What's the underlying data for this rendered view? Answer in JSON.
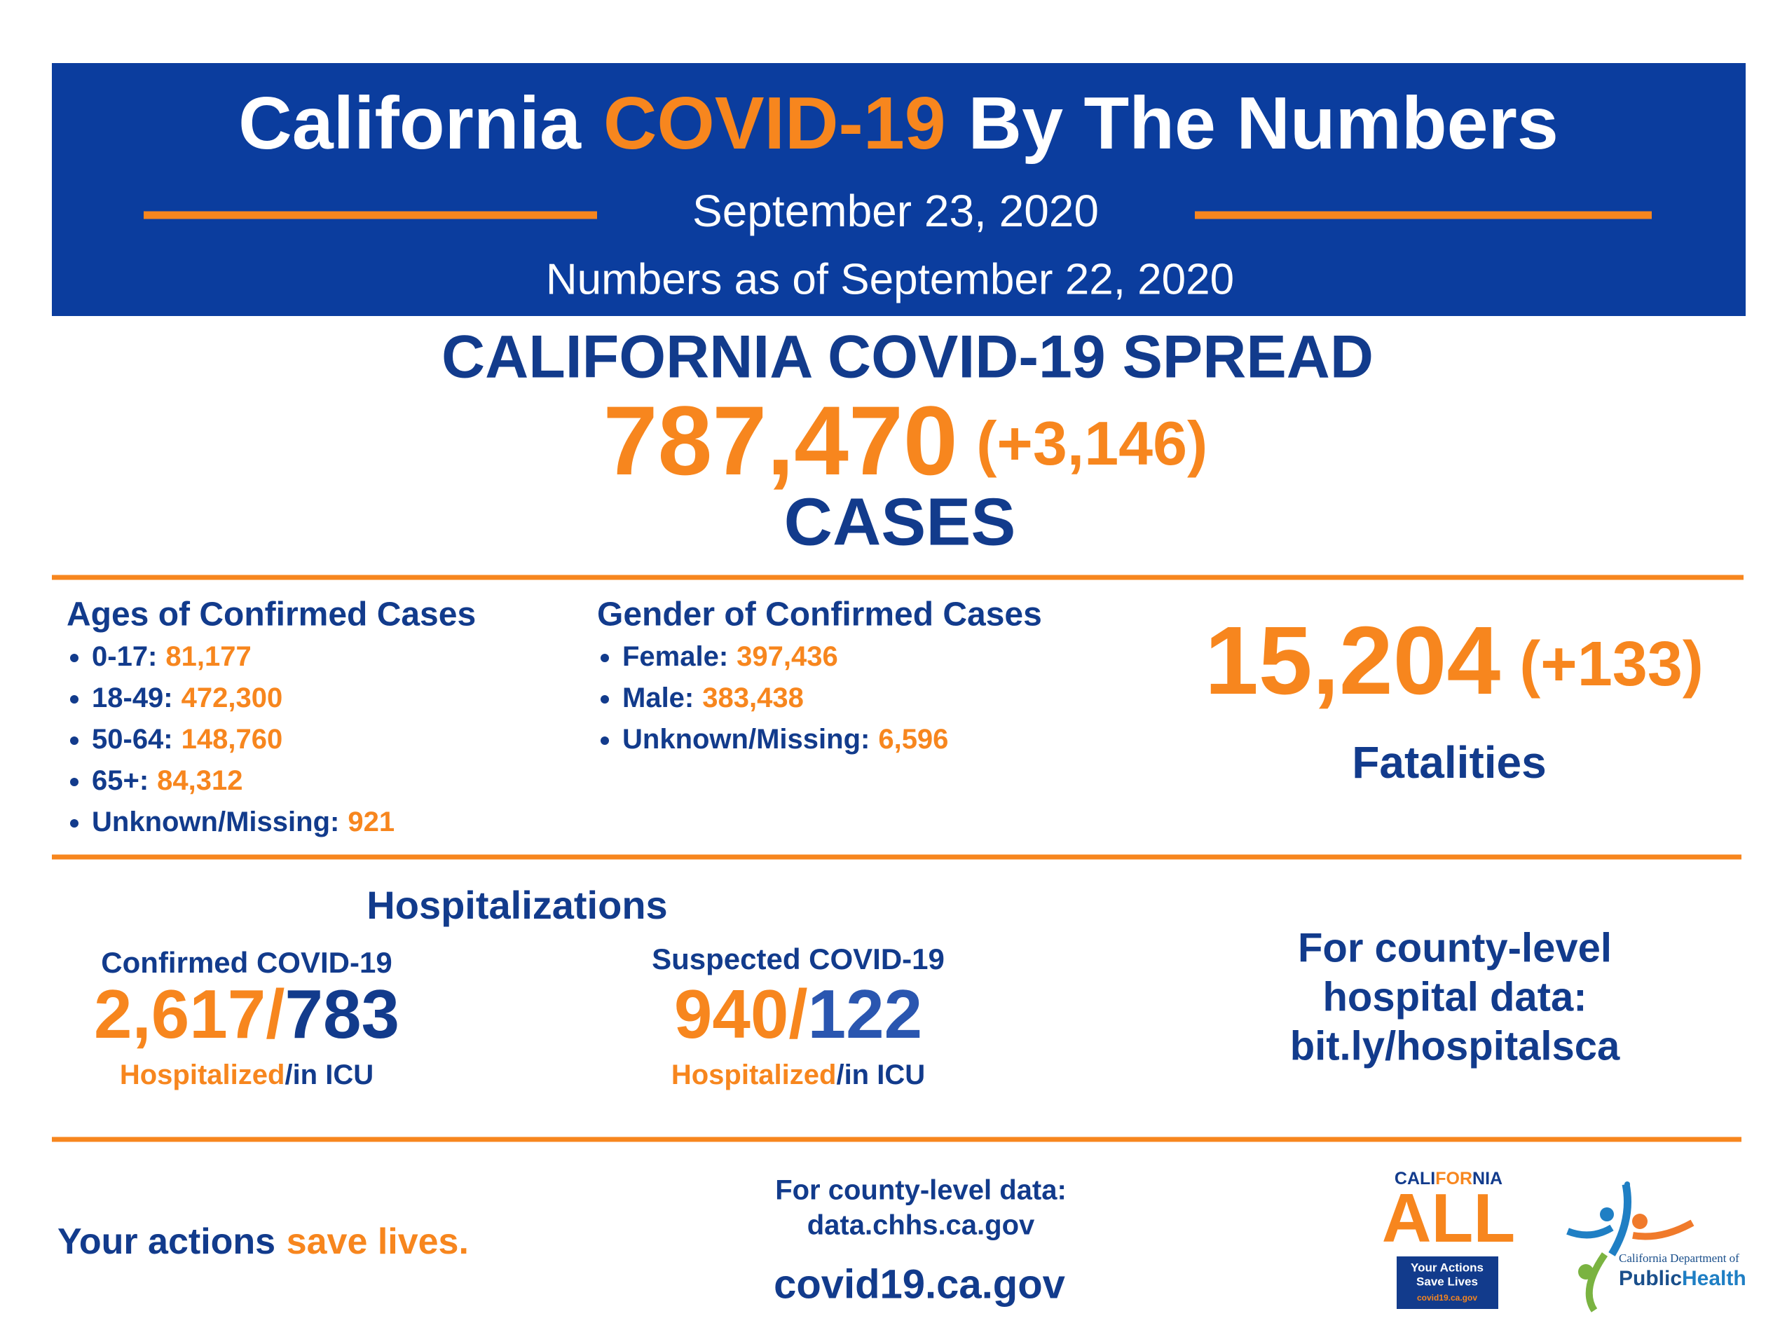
{
  "header": {
    "title_parts": [
      "California",
      "COVID-19",
      "By The Numbers"
    ],
    "date": "September 23, 2020",
    "as_of": "Numbers as of September 22, 2020"
  },
  "spread": {
    "title": "CALIFORNIA COVID-19 SPREAD",
    "cases": "787,470",
    "change": "(+3,146)",
    "unit": "CASES"
  },
  "ages": {
    "title": "Ages of Confirmed Cases",
    "items": [
      {
        "label": "0-17:",
        "value": "81,177"
      },
      {
        "label": "18-49:",
        "value": "472,300"
      },
      {
        "label": "50-64:",
        "value": "148,760"
      },
      {
        "label": "65+:",
        "value": "84,312"
      },
      {
        "label": "Unknown/Missing:",
        "value": "921"
      }
    ]
  },
  "gender": {
    "title": "Gender of Confirmed Cases",
    "items": [
      {
        "label": "Female:",
        "value": "397,436"
      },
      {
        "label": "Male:",
        "value": "383,438"
      },
      {
        "label": "Unknown/Missing:",
        "value": "6,596"
      }
    ]
  },
  "fatalities": {
    "value": "15,204",
    "change": "(+133)",
    "label": "Fatalities"
  },
  "hospitalizations": {
    "title": "Hospitalizations",
    "confirmed": {
      "title": "Confirmed COVID-19",
      "hospitalized": "2,617/",
      "icu": "783",
      "hospitalized_label": "Hospitalized",
      "icu_label": "/in ICU"
    },
    "suspected": {
      "title": "Suspected COVID-19",
      "hospitalized": "940/",
      "icu": "122",
      "hospitalized_label": "Hospitalized",
      "icu_label": "/in ICU"
    }
  },
  "county_hospital": {
    "lines": [
      "For county-level",
      "hospital data:",
      "bit.ly/hospitalsca"
    ]
  },
  "footer": {
    "slogan": [
      "Your actions",
      "save lives."
    ],
    "county_data": [
      "For county-level data:",
      "data.chhs.ca.gov"
    ],
    "website": "covid19.ca.gov"
  },
  "logos": {
    "california_all": {
      "top": [
        "CALI",
        "FOR",
        "NIA"
      ],
      "big": "ALL",
      "box": [
        "Your Actions",
        "Save Lives",
        "covid19.ca.gov"
      ]
    },
    "cdph": {
      "line1": "California Department of",
      "line2": [
        "Public",
        "Health"
      ]
    }
  }
}
